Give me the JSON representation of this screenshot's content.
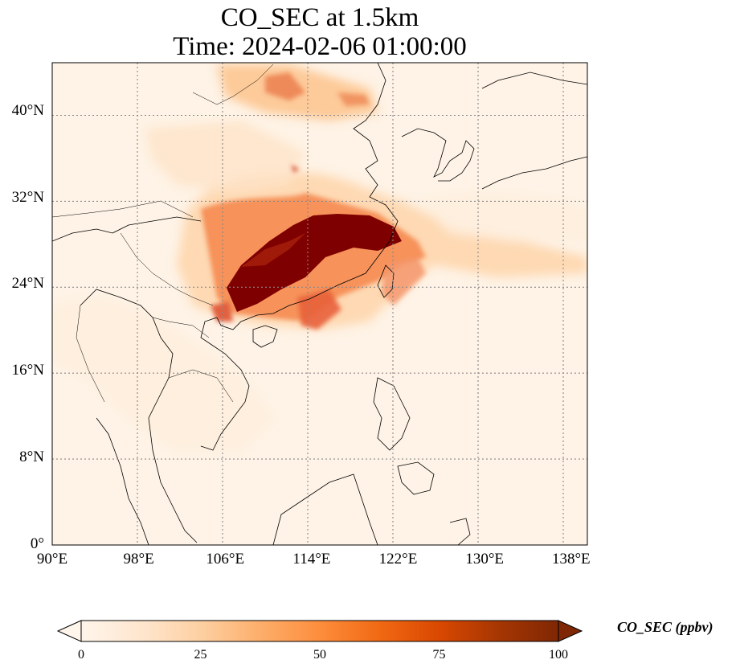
{
  "title": {
    "line1": "CO_SEC at 1.5km",
    "line2": "Time: 2024-02-06 01:00:00"
  },
  "map": {
    "lat_range": [
      0,
      44.5
    ],
    "lon_range": [
      90,
      139.5
    ],
    "gridlines": true,
    "y_ticks": [
      {
        "value": 0,
        "label": "0°"
      },
      {
        "value": 8,
        "label": "8°N"
      },
      {
        "value": 16,
        "label": "16°N"
      },
      {
        "value": 24,
        "label": "24°N"
      },
      {
        "value": 32,
        "label": "32°N"
      },
      {
        "value": 40,
        "label": "40°N"
      }
    ],
    "x_ticks": [
      {
        "value": 90,
        "label": "90°E"
      },
      {
        "value": 98,
        "label": "98°E"
      },
      {
        "value": 106,
        "label": "106°E"
      },
      {
        "value": 114,
        "label": "114°E"
      },
      {
        "value": 122,
        "label": "122°E"
      },
      {
        "value": 130,
        "label": "130°E"
      },
      {
        "value": 138,
        "label": "138°E"
      }
    ]
  },
  "colorbar": {
    "label": "CO_SEC (ppbv)",
    "range": [
      0,
      100
    ],
    "extend": "both",
    "colormap": [
      "#fff5eb",
      "#fee6ce",
      "#fdd0a2",
      "#fdae6b",
      "#fd8d3c",
      "#f16913",
      "#d94801",
      "#a63603",
      "#7f2704"
    ],
    "ticks": [
      {
        "value": 0,
        "label": "0"
      },
      {
        "value": 25,
        "label": "25"
      },
      {
        "value": 50,
        "label": "50"
      },
      {
        "value": 75,
        "label": "75"
      },
      {
        "value": 100,
        "label": "100"
      }
    ]
  }
}
